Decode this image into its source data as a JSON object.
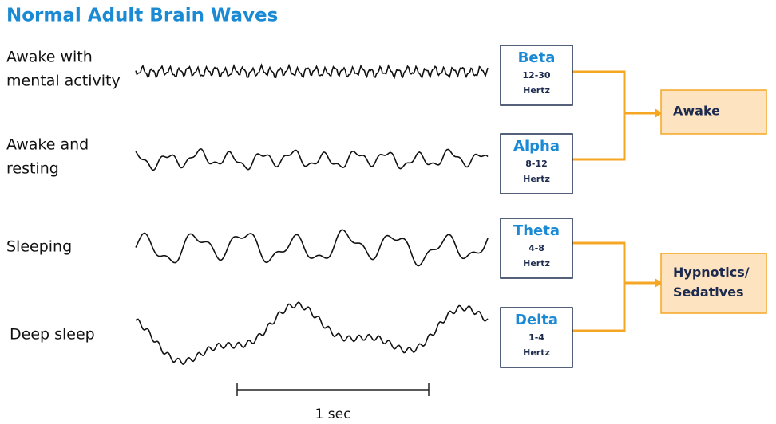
{
  "header": {
    "title": "Normal Adult Brain Waves"
  },
  "rows": [
    {
      "label": [
        "Awake with",
        "mental activity"
      ],
      "wave": "Beta",
      "range": "12-30",
      "unit": "Hertz"
    },
    {
      "label": [
        "Awake and",
        "resting"
      ],
      "wave": "Alpha",
      "range": "8-12",
      "unit": "Hertz"
    },
    {
      "label": [
        "Sleeping"
      ],
      "wave": "Theta",
      "range": "4-8",
      "unit": "Hertz"
    },
    {
      "label": [
        "Deep sleep"
      ],
      "wave": "Delta",
      "range": "1-4",
      "unit": "Hertz"
    }
  ],
  "groups": [
    {
      "label": [
        "Awake"
      ]
    },
    {
      "label": [
        "Hypnotics/",
        "Sedatives"
      ]
    }
  ],
  "scale": {
    "label": "1 sec"
  }
}
